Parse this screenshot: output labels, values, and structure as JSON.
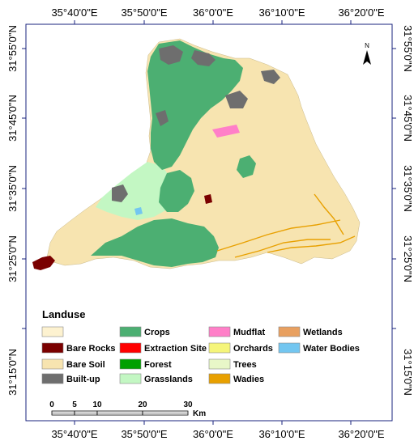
{
  "map": {
    "top_ticks": [
      "35°40'0\"E",
      "35°50'0\"E",
      "36°0'0\"E",
      "36°10'0\"E",
      "36°20'0\"E"
    ],
    "bottom_ticks": [
      "35°40'0\"E",
      "35°50'0\"E",
      "36°0'0\"E",
      "36°10'0\"E",
      "36°20'0\"E"
    ],
    "left_ticks": [
      "31°55'0\"N",
      "31°45'0\"N",
      "31°35'0\"N",
      "31°25'0\"N",
      "31°15'0\"N"
    ],
    "right_ticks": [
      "31°55'0\"N",
      "31°45'0\"N",
      "31°35'0\"N",
      "31°25'0\"N",
      "31°15'0\"N"
    ],
    "north_label": "N"
  },
  "legend": {
    "title": "Landuse",
    "items": [
      {
        "label": "",
        "color": "#fdf2d0"
      },
      {
        "label": "Bare Rocks",
        "color": "#7a0000"
      },
      {
        "label": "Bare Soil",
        "color": "#f7e4b0"
      },
      {
        "label": "Built-up",
        "color": "#6e6e6e"
      },
      {
        "label": "Crops",
        "color": "#4caf72"
      },
      {
        "label": "Extraction Site",
        "color": "#ff0000"
      },
      {
        "label": "Forest",
        "color": "#00a000"
      },
      {
        "label": "Grasslands",
        "color": "#c3f7c3"
      },
      {
        "label": "Mudflat",
        "color": "#ff7fc8"
      },
      {
        "label": "Orchards",
        "color": "#f5f57a"
      },
      {
        "label": "Trees",
        "color": "#e8f7c8"
      },
      {
        "label": "Wadies",
        "color": "#e8a000"
      },
      {
        "label": "Wetlands",
        "color": "#e8a060"
      },
      {
        "label": "Water Bodies",
        "color": "#73c6f0"
      }
    ]
  },
  "scale_bar": {
    "labels": [
      "0",
      "5",
      "10",
      "20",
      "30"
    ],
    "unit": "Km"
  }
}
